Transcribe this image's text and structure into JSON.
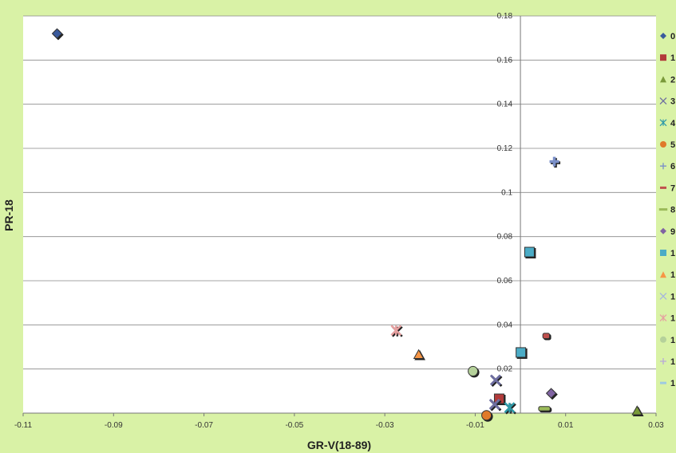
{
  "chart_data": {
    "type": "scatter",
    "xlabel": "GR-V(18-89)",
    "ylabel": "PR-18",
    "xlim": [
      -0.11,
      0.03
    ],
    "ylim": [
      0,
      0.18
    ],
    "x_ticks": [
      "-0.11",
      "-0.09",
      "-0.07",
      "-0.05",
      "-0.03",
      "-0.01",
      "0.01",
      "0.03"
    ],
    "y_ticks": [
      "0",
      "0.02",
      "0.04",
      "0.06",
      "0.08",
      "0.1",
      "0.12",
      "0.14",
      "0.16",
      "0.18"
    ],
    "grid": "horizontal",
    "legend_position": "right",
    "series": [
      {
        "name": "0",
        "marker": "diamond",
        "color": "#3a5a9c",
        "points": [
          [
            -0.1025,
            0.172
          ]
        ]
      },
      {
        "name": "1",
        "marker": "square",
        "color": "#b23a3a",
        "points": [
          [
            -0.0047,
            0.0065
          ]
        ]
      },
      {
        "name": "2",
        "marker": "triangle",
        "color": "#7a9a3a",
        "points": [
          [
            0.0258,
            0.001
          ]
        ]
      },
      {
        "name": "3",
        "marker": "x",
        "color": "#6e6ea0",
        "points": [
          [
            -0.0055,
            0.015
          ],
          [
            -0.0057,
            0.004
          ]
        ]
      },
      {
        "name": "4",
        "marker": "asterisk",
        "color": "#2e9aa8",
        "points": [
          [
            -0.0024,
            0.0025
          ]
        ]
      },
      {
        "name": "5",
        "marker": "circle",
        "color": "#e07a2a",
        "points": [
          [
            -0.0075,
            -0.001
          ]
        ]
      },
      {
        "name": "6",
        "marker": "plus",
        "color": "#7a8fc8",
        "points": [
          [
            0.0075,
            0.114
          ]
        ]
      },
      {
        "name": "7",
        "marker": "dash",
        "color": "#c0504d",
        "points": [
          [
            0.0057,
            0.035
          ]
        ]
      },
      {
        "name": "8",
        "marker": "bar",
        "color": "#9bbb59",
        "points": [
          [
            0.0053,
            0.002
          ]
        ]
      },
      {
        "name": "9",
        "marker": "diamond",
        "color": "#8064a2",
        "points": [
          [
            0.0068,
            0.009
          ]
        ]
      },
      {
        "name": "1",
        "marker": "square",
        "color": "#4bacc6",
        "points": [
          [
            0.0001,
            0.0275
          ],
          [
            0.002,
            0.073
          ]
        ]
      },
      {
        "name": "1",
        "marker": "triangle",
        "color": "#f79646",
        "points": [
          [
            -0.0225,
            0.0265
          ]
        ]
      },
      {
        "name": "1",
        "marker": "x",
        "color": "#a5b4e0",
        "points": []
      },
      {
        "name": "1",
        "marker": "asterisk",
        "color": "#e6a0a0",
        "points": [
          [
            -0.0275,
            0.0375
          ]
        ]
      },
      {
        "name": "1",
        "marker": "circle",
        "color": "#b5d19a",
        "points": [
          [
            -0.0105,
            0.019
          ]
        ]
      },
      {
        "name": "1",
        "marker": "plus",
        "color": "#b8a8d8",
        "points": []
      },
      {
        "name": "1",
        "marker": "dash",
        "color": "#9ecae1",
        "points": []
      }
    ]
  }
}
